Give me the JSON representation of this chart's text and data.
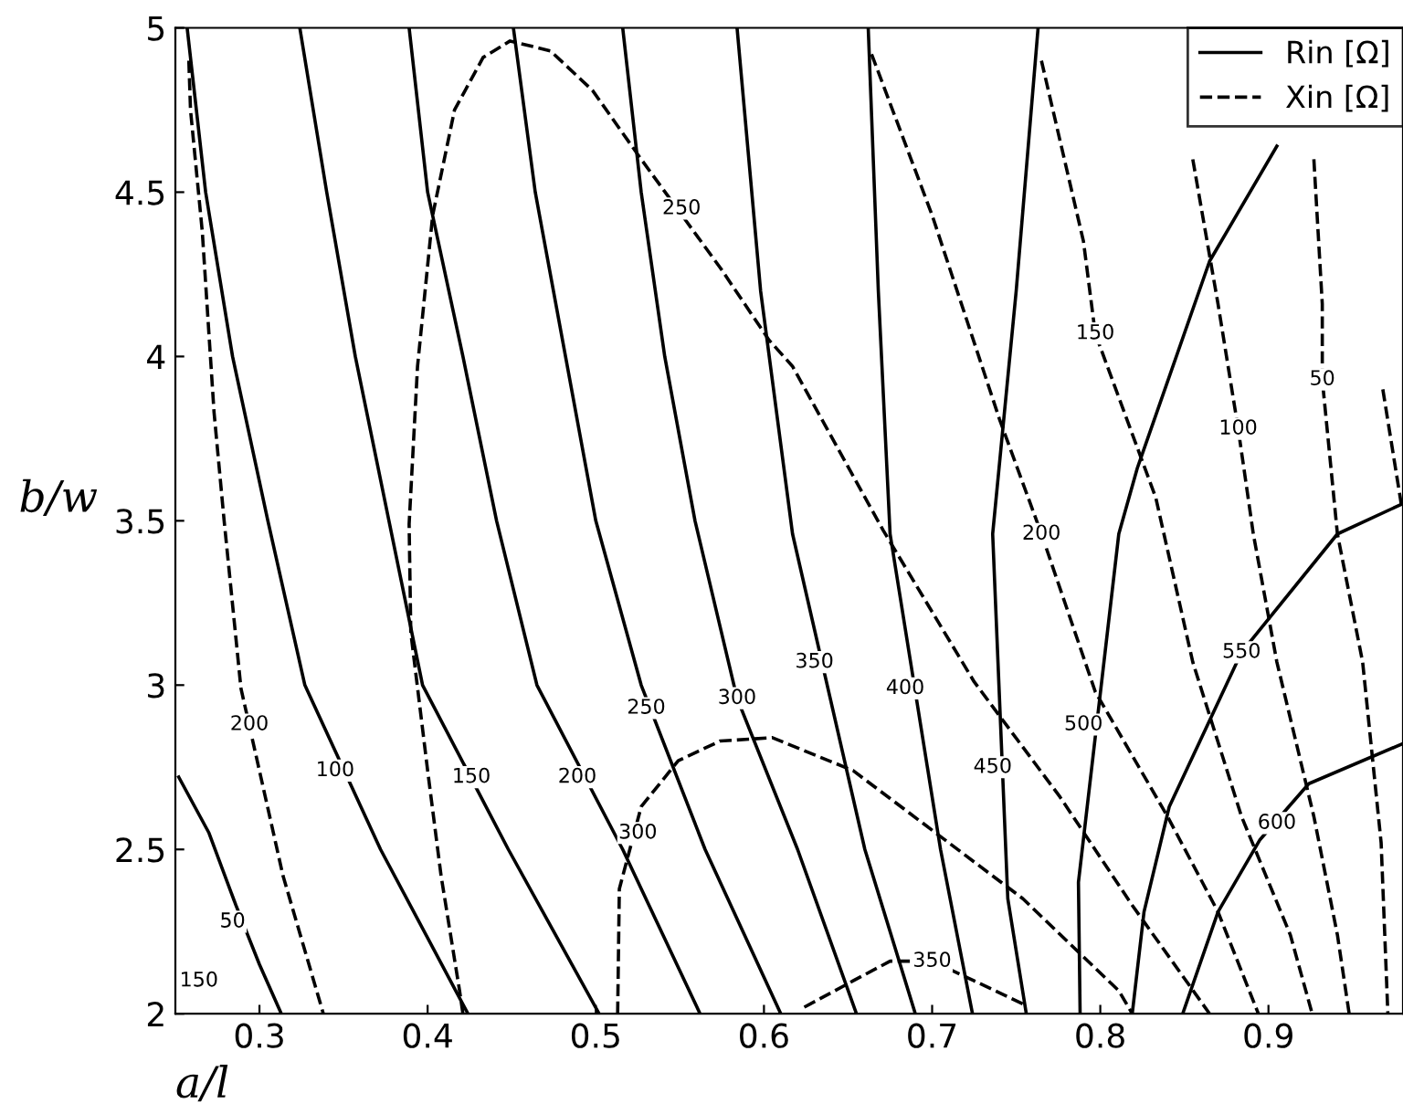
{
  "chart_data": {
    "type": "line",
    "xlabel": "a/l",
    "ylabel": "b/w",
    "xlim": [
      0.25,
      0.98
    ],
    "ylim": [
      2,
      5
    ],
    "xticks": [
      0.3,
      0.4,
      0.5,
      0.6,
      0.7,
      0.8,
      0.9
    ],
    "yticks": [
      2,
      2.5,
      3,
      3.5,
      4,
      4.5,
      5
    ],
    "grid": false,
    "legend": "top right",
    "marker": "none",
    "series": [
      {
        "name": "Rin [Ω]",
        "color": "#000000",
        "line_style": "solid",
        "x": [
          0.252,
          0.27,
          0.286,
          0.3,
          0.313
        ],
        "values": [
          2.72,
          2.55,
          2.33,
          2.15,
          2.0
        ]
      },
      {
        "color": "#000000",
        "line_style": "solid",
        "x": [
          0.257,
          0.268,
          0.284,
          0.305,
          0.327,
          0.372,
          0.424
        ],
        "values": [
          5,
          4.5,
          4,
          3.5,
          3,
          2.5,
          2
        ]
      },
      {
        "color": "#000000",
        "line_style": "solid",
        "x": [
          0.324,
          0.34,
          0.357,
          0.377,
          0.397,
          0.448,
          0.502
        ],
        "values": [
          5,
          4.5,
          4,
          3.5,
          3,
          2.5,
          2
        ]
      },
      {
        "color": "#000000",
        "line_style": "solid",
        "x": [
          0.389,
          0.4,
          0.421,
          0.441,
          0.465,
          0.516,
          0.562
        ],
        "values": [
          5,
          4.5,
          4,
          3.5,
          3,
          2.5,
          2
        ]
      },
      {
        "color": "#000000",
        "line_style": "solid",
        "x": [
          0.451,
          0.464,
          0.482,
          0.5,
          0.527,
          0.565,
          0.61
        ],
        "values": [
          5,
          4.5,
          4,
          3.5,
          3,
          2.5,
          2
        ]
      },
      {
        "color": "#000000",
        "line_style": "solid",
        "x": [
          0.516,
          0.527,
          0.541,
          0.559,
          0.584,
          0.62,
          0.655
        ],
        "values": [
          5,
          4.5,
          4,
          3.5,
          2.96,
          2.5,
          2
        ]
      },
      {
        "color": "#000000",
        "line_style": "solid",
        "x": [
          0.584,
          0.598,
          0.617,
          0.66,
          0.69
        ],
        "values": [
          5,
          4.2,
          3.46,
          2.5,
          2
        ]
      },
      {
        "color": "#000000",
        "line_style": "solid",
        "x": [
          0.662,
          0.668,
          0.675,
          0.705,
          0.724
        ],
        "values": [
          5,
          4.2,
          3.46,
          2.5,
          2
        ]
      },
      {
        "color": "#000000",
        "line_style": "solid",
        "x": [
          0.763,
          0.75,
          0.736,
          0.745,
          0.756
        ],
        "values": [
          5,
          4.2,
          3.46,
          2.35,
          2
        ]
      },
      {
        "color": "#000000",
        "line_style": "solid",
        "x": [
          0.905,
          0.865,
          0.822,
          0.811,
          0.787,
          0.788
        ],
        "values": [
          4.64,
          4.29,
          3.66,
          3.46,
          2.4,
          2
        ]
      },
      {
        "color": "#000000",
        "line_style": "solid",
        "x": [
          0.979,
          0.941,
          0.884,
          0.841,
          0.826,
          0.819
        ],
        "values": [
          3.55,
          3.46,
          3.1,
          2.63,
          2.31,
          2
        ]
      },
      {
        "color": "#000000",
        "line_style": "solid",
        "x": [
          0.979,
          0.924,
          0.895,
          0.87,
          0.849
        ],
        "values": [
          2.82,
          2.7,
          2.53,
          2.31,
          2
        ]
      },
      {
        "name": "Xin [Ω]",
        "color": "#000000",
        "line_style": "dashed",
        "x": [
          0.258,
          0.259,
          0.266,
          0.273,
          0.279,
          0.289,
          0.314,
          0.338
        ],
        "values": [
          4.9,
          4.75,
          4.38,
          3.83,
          3.5,
          2.99,
          2.42,
          2.0
        ]
      },
      {
        "color": "#000000",
        "line_style": "dashed",
        "x": [
          0.421,
          0.419,
          0.408,
          0.4,
          0.39,
          0.389,
          0.394,
          0.403,
          0.416,
          0.433,
          0.449,
          0.473,
          0.498,
          0.527,
          0.574,
          0.603,
          0.617,
          0.671,
          0.725,
          0.776,
          0.819,
          0.865
        ],
        "values": [
          2.0,
          2.07,
          2.42,
          2.74,
          3.16,
          3.49,
          3.97,
          4.43,
          4.75,
          4.91,
          4.96,
          4.93,
          4.81,
          4.6,
          4.27,
          4.05,
          3.97,
          3.47,
          3.01,
          2.66,
          2.33,
          2.0
        ]
      },
      {
        "color": "#000000",
        "line_style": "dashed",
        "x": [
          0.513,
          0.514,
          0.527,
          0.549,
          0.574,
          0.605,
          0.653,
          0.754,
          0.811,
          0.819
        ],
        "values": [
          2.0,
          2.38,
          2.63,
          2.77,
          2.83,
          2.84,
          2.74,
          2.35,
          2.07,
          2.0
        ]
      },
      {
        "color": "#000000",
        "line_style": "dashed",
        "x": [
          0.624,
          0.653,
          0.675,
          0.7,
          0.725,
          0.754
        ],
        "values": [
          2.02,
          2.1,
          2.16,
          2.16,
          2.1,
          2.03
        ]
      },
      {
        "color": "#000000",
        "line_style": "dashed",
        "x": [
          0.664,
          0.7,
          0.74,
          0.765,
          0.797,
          0.84,
          0.87,
          0.894
        ],
        "values": [
          4.92,
          4.43,
          3.81,
          3.46,
          2.98,
          2.6,
          2.31,
          2.0
        ]
      },
      {
        "color": "#000000",
        "line_style": "dashed",
        "x": [
          0.765,
          0.79,
          0.797,
          0.833,
          0.855,
          0.884,
          0.913,
          0.926
        ],
        "values": [
          4.9,
          4.35,
          4.07,
          3.57,
          3.07,
          2.6,
          2.24,
          2.0
        ]
      },
      {
        "color": "#000000",
        "line_style": "dashed",
        "x": [
          0.855,
          0.87,
          0.882,
          0.891,
          0.905,
          0.927,
          0.941,
          0.948
        ],
        "values": [
          4.6,
          4.16,
          3.78,
          3.46,
          3.07,
          2.6,
          2.24,
          2.0
        ]
      },
      {
        "color": "#000000",
        "line_style": "dashed",
        "x": [
          0.927,
          0.932,
          0.932,
          0.941,
          0.956,
          0.967,
          0.971
        ],
        "values": [
          4.6,
          4.16,
          3.93,
          3.46,
          3.07,
          2.52,
          2.0
        ]
      },
      {
        "color": "#000000",
        "line_style": "dashed",
        "x": [
          0.968,
          0.979
        ],
        "values": [
          3.9,
          3.55
        ]
      }
    ],
    "annotations": [
      {
        "text": "50",
        "x": 0.284,
        "y": 2.28
      },
      {
        "text": "100",
        "x": 0.345,
        "y": 2.74
      },
      {
        "text": "150",
        "x": 0.426,
        "y": 2.72
      },
      {
        "text": "200",
        "x": 0.489,
        "y": 2.72
      },
      {
        "text": "250",
        "x": 0.53,
        "y": 2.93
      },
      {
        "text": "300",
        "x": 0.584,
        "y": 2.96
      },
      {
        "text": "350",
        "x": 0.63,
        "y": 3.07
      },
      {
        "text": "400",
        "x": 0.684,
        "y": 2.99
      },
      {
        "text": "450",
        "x": 0.736,
        "y": 2.75
      },
      {
        "text": "500",
        "x": 0.79,
        "y": 2.88
      },
      {
        "text": "550",
        "x": 0.884,
        "y": 3.1
      },
      {
        "text": "600",
        "x": 0.905,
        "y": 2.58
      },
      {
        "text": "150",
        "x": 0.264,
        "y": 2.1
      },
      {
        "text": "200",
        "x": 0.294,
        "y": 2.88
      },
      {
        "text": "250",
        "x": 0.551,
        "y": 4.45
      },
      {
        "text": "300",
        "x": 0.525,
        "y": 2.55
      },
      {
        "text": "350",
        "x": 0.7,
        "y": 2.16
      },
      {
        "text": "200",
        "x": 0.765,
        "y": 3.46
      },
      {
        "text": "150",
        "x": 0.797,
        "y": 4.07
      },
      {
        "text": "100",
        "x": 0.882,
        "y": 3.78
      },
      {
        "text": "50",
        "x": 0.932,
        "y": 3.93
      }
    ]
  }
}
